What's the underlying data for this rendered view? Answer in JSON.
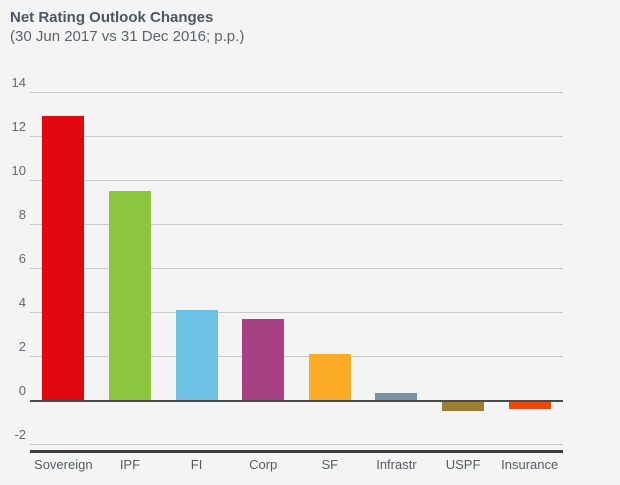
{
  "header": {
    "title": "Net Rating Outlook Changes",
    "subtitle": "(30 Jun 2017 vs 31 Dec 2016; p.p.)"
  },
  "colors": {
    "background": "#f4f4f4",
    "title_text": "#4c5760",
    "subtitle_text": "#5b656c",
    "tick_text": "#63696e",
    "gridline": "#c9c9c9",
    "zero_line": "#4a4a4a",
    "bottom_border": "#3b3b3b"
  },
  "chart_data": {
    "type": "bar",
    "title": "Net Rating Outlook Changes",
    "subtitle": "(30 Jun 2017 vs 31 Dec 2016; p.p.)",
    "categories": [
      "Sovereign",
      "IPF",
      "FI",
      "Corp",
      "SF",
      "Infrastr",
      "USPF",
      "Insurance"
    ],
    "values": [
      12.9,
      9.5,
      4.1,
      3.7,
      2.1,
      0.3,
      -0.5,
      -0.4
    ],
    "bar_colors": [
      "#e0080e",
      "#8cc63e",
      "#6cc1e5",
      "#a84084",
      "#fbab26",
      "#7795a7",
      "#9d7e35",
      "#f1470f"
    ],
    "xlabel": "",
    "ylabel": "",
    "ylim": [
      -2.3,
      14
    ],
    "yticks": [
      14,
      12,
      10,
      8,
      6,
      4,
      2,
      0,
      -2
    ],
    "grid": true,
    "legend": false
  }
}
